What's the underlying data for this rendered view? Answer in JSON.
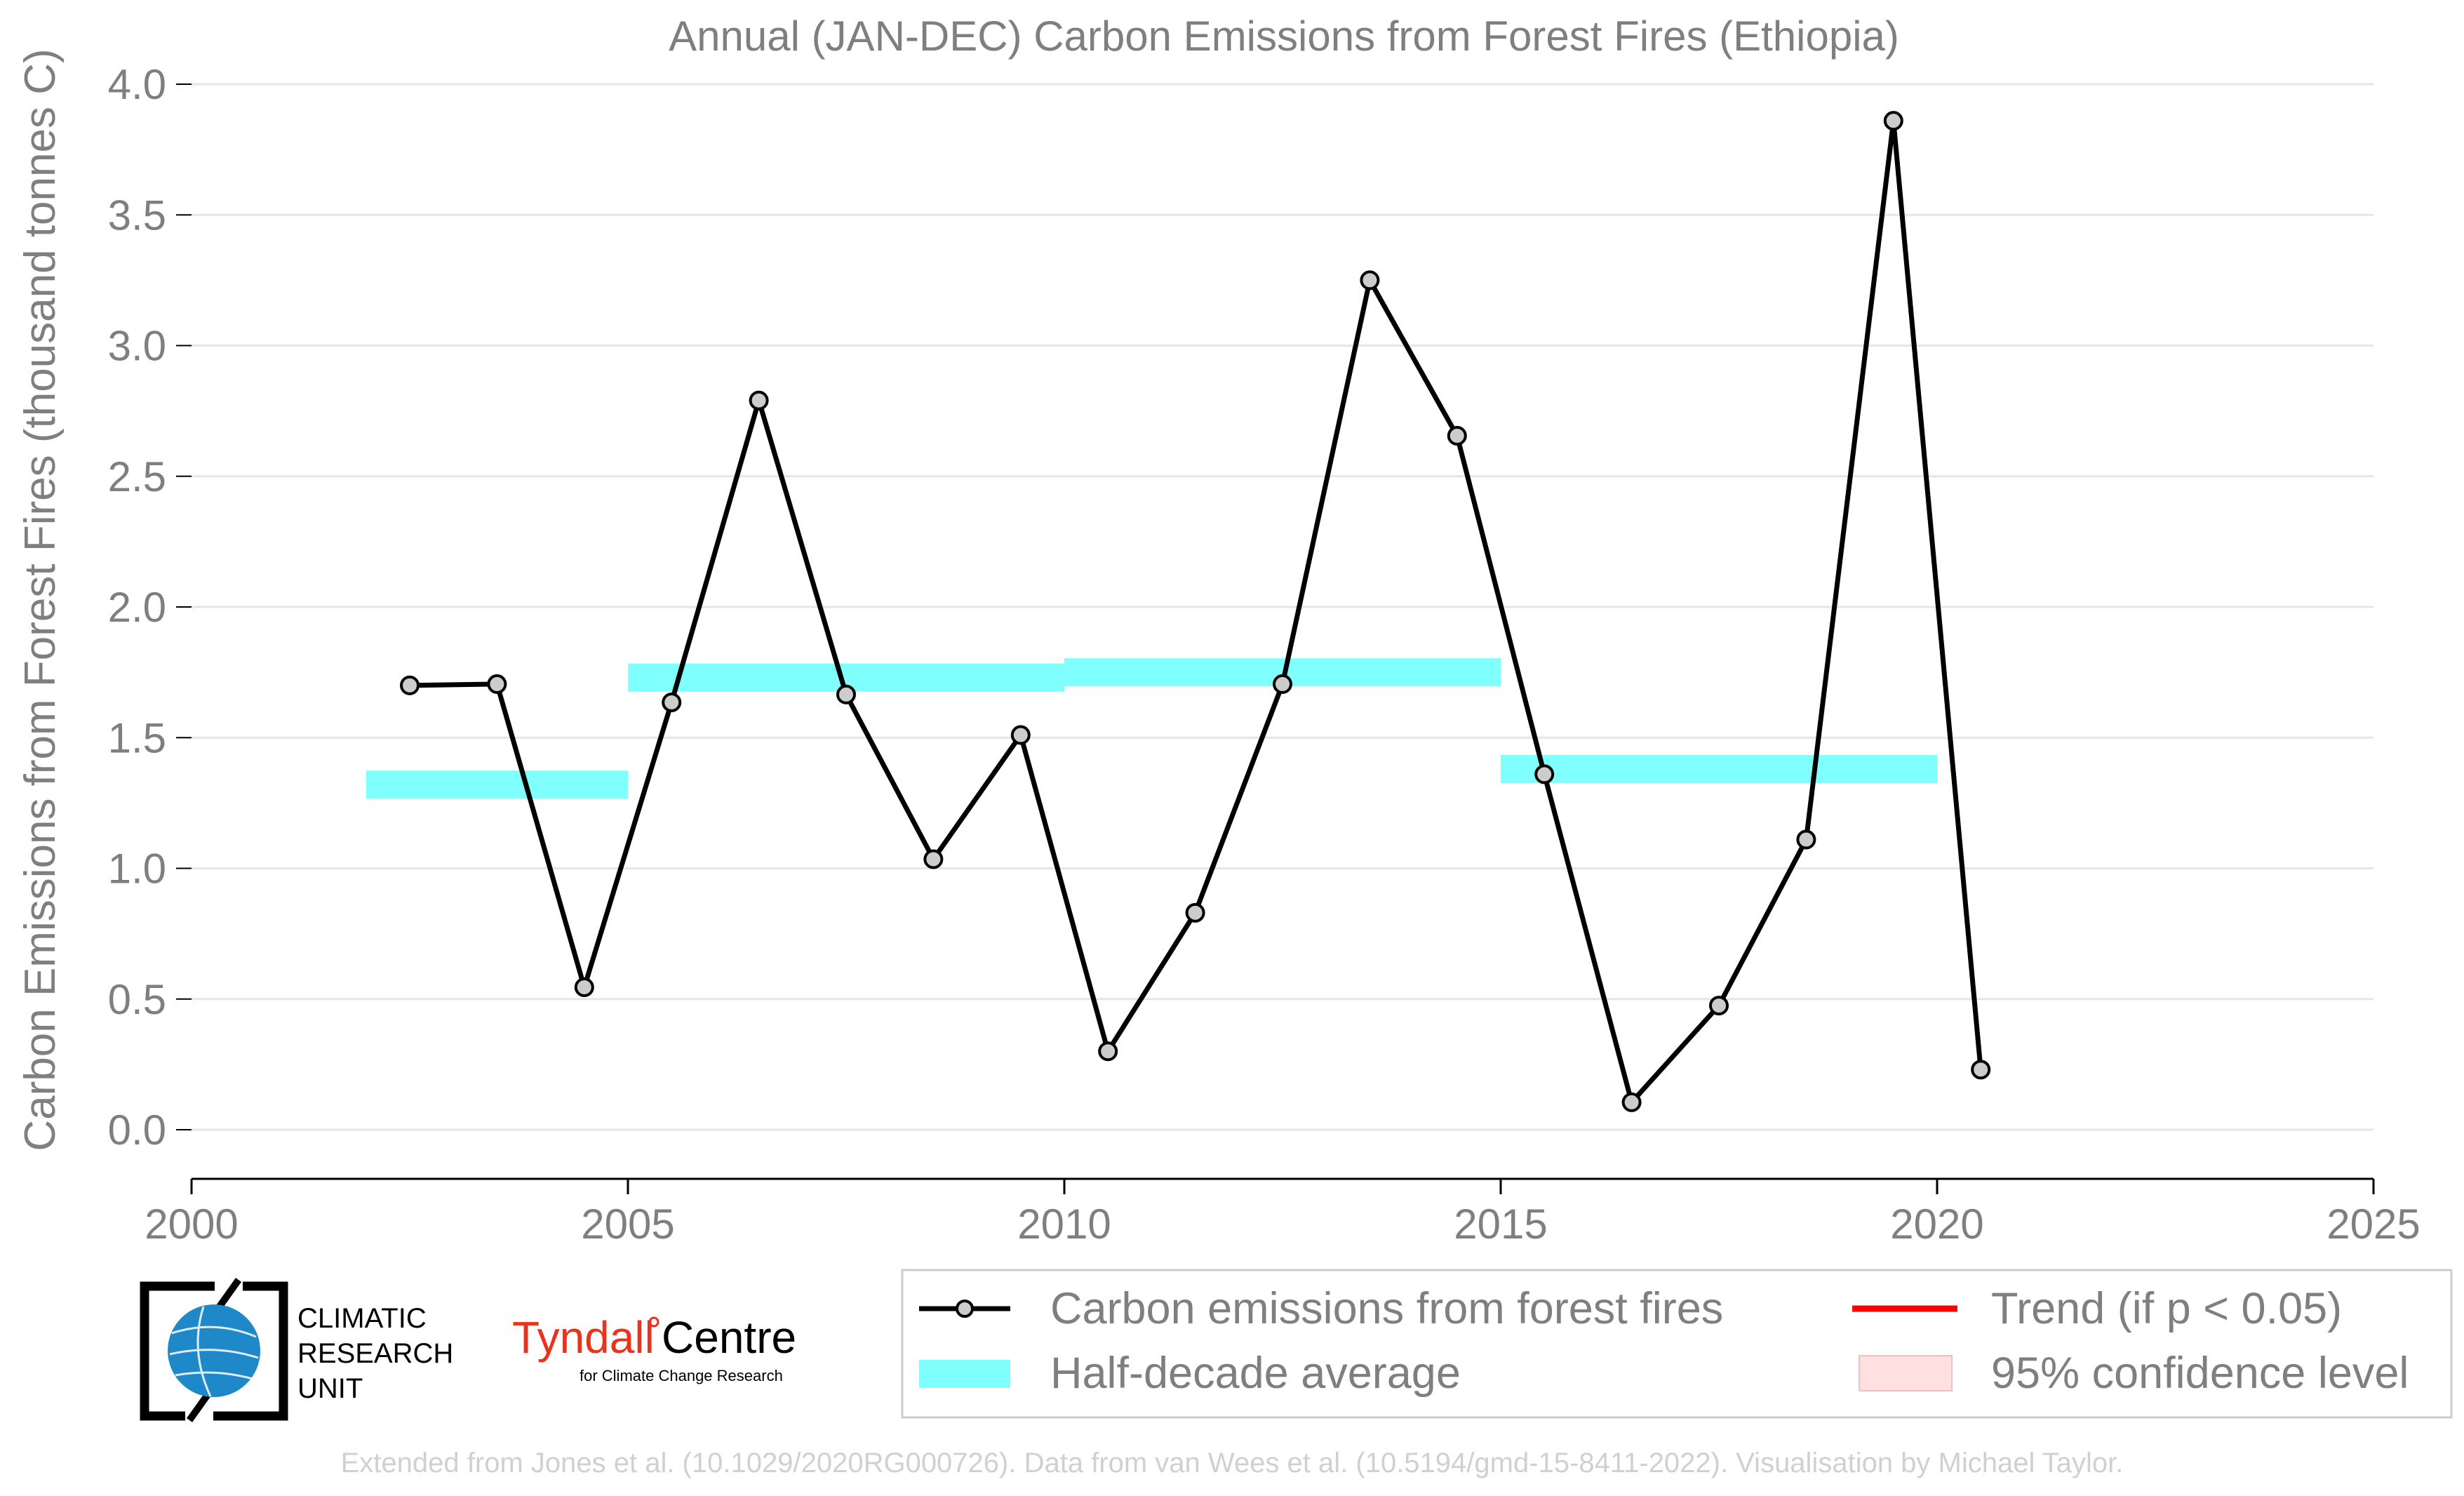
{
  "chart_data": {
    "type": "line",
    "title": "Annual (JAN-DEC) Carbon Emissions from Forest Fires (Ethiopia)",
    "xlabel": "",
    "ylabel": "Carbon Emissions from Forest Fires (thousand tonnes C)",
    "xlim": [
      2000,
      2025
    ],
    "ylim": [
      0,
      4.0
    ],
    "xticks": [
      2000,
      2005,
      2010,
      2015,
      2020,
      2025
    ],
    "yticks": [
      0.0,
      0.5,
      1.0,
      1.5,
      2.0,
      2.5,
      3.0,
      3.5,
      4.0
    ],
    "xtick_labels": [
      "2000",
      "2005",
      "2010",
      "2015",
      "2020",
      "2025"
    ],
    "ytick_labels": [
      "0.0",
      "0.5",
      "1.0",
      "1.5",
      "2.0",
      "2.5",
      "3.0",
      "3.5",
      "4.0"
    ],
    "grid": "horizontal",
    "series": [
      {
        "name": "Carbon emissions from forest fires",
        "color": "#000000",
        "marker_fill": "#cccccc",
        "x": [
          2002.5,
          2003.5,
          2004.5,
          2005.5,
          2006.5,
          2007.5,
          2008.5,
          2009.5,
          2010.5,
          2011.5,
          2012.5,
          2013.5,
          2014.5,
          2015.5,
          2016.5,
          2017.5,
          2018.5,
          2019.5,
          2020.5
        ],
        "y": [
          1.7,
          1.705,
          0.545,
          1.635,
          2.79,
          1.665,
          1.035,
          1.51,
          0.3,
          0.83,
          1.705,
          3.25,
          2.655,
          1.36,
          0.105,
          0.475,
          1.11,
          3.86,
          0.23
        ]
      }
    ],
    "half_decade_average": {
      "name": "Half-decade average",
      "color": "#80ffff",
      "segments": [
        {
          "x_start": 2002,
          "x_end": 2005,
          "value": 1.32
        },
        {
          "x_start": 2005,
          "x_end": 2010,
          "value": 1.73
        },
        {
          "x_start": 2010,
          "x_end": 2015,
          "value": 1.75
        },
        {
          "x_start": 2015,
          "x_end": 2020,
          "value": 1.38
        }
      ]
    },
    "legend": {
      "placement": "bottom-right",
      "entries": [
        {
          "label": "Carbon emissions from forest fires",
          "kind": "line-marker",
          "color": "#000000"
        },
        {
          "label": "Trend (if p < 0.05)",
          "kind": "line",
          "color": "#ff0000"
        },
        {
          "label": "Half-decade average",
          "kind": "band",
          "color": "#80ffff"
        },
        {
          "label": "95% confidence level",
          "kind": "patch",
          "color": "#ffe0e0"
        }
      ]
    }
  },
  "logos": {
    "cru_line1": "CLIMATIC",
    "cru_line2": "RESEARCH",
    "cru_line3": "UNIT",
    "tyndall_name": "Tyndall",
    "tyndall_centre": "Centre",
    "tyndall_sub": "for Climate Change Research"
  },
  "footer": {
    "credit": "Extended from Jones et al. (10.1029/2020RG000726). Data from van Wees et al. (10.5194/gmd-15-8411-2022). Visualisation by Michael Taylor."
  },
  "colors": {
    "text_gray": "#7f7f7f",
    "grid": "#e6e6e6",
    "tyndall_red": "#e8341c",
    "cru_blue": "#1e88c8"
  }
}
